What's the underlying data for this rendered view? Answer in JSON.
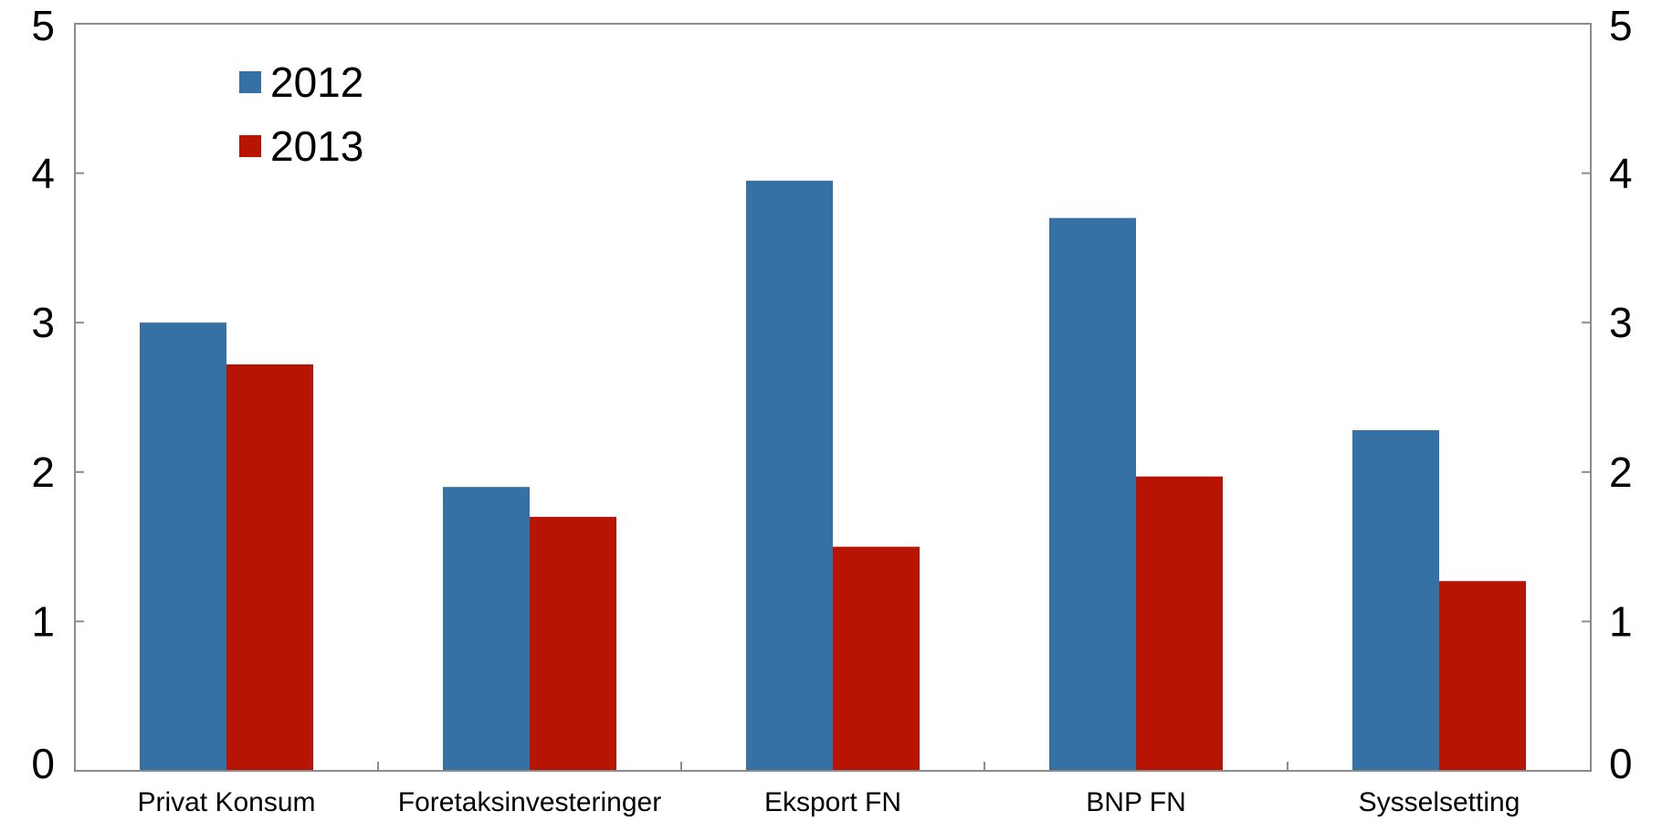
{
  "chart_data": {
    "type": "bar",
    "categories": [
      "Privat Konsum",
      "Foretaksinvesteringer",
      "Eksport FN",
      "BNP FN",
      "Sysselsetting"
    ],
    "series": [
      {
        "name": "2012",
        "color": "#3571A5",
        "values": [
          3.0,
          1.9,
          3.95,
          3.7,
          2.28
        ]
      },
      {
        "name": "2013",
        "color": "#B81404",
        "values": [
          2.72,
          1.7,
          1.5,
          1.97,
          1.27
        ]
      }
    ],
    "title": "",
    "xlabel": "",
    "ylabel": "",
    "ylim": [
      0,
      5
    ],
    "yticks": [
      "0",
      "1",
      "2",
      "3",
      "4",
      "5"
    ],
    "y2ticks": [
      "0",
      "1",
      "2",
      "3",
      "4",
      "5"
    ],
    "grid": false,
    "legend_position": "top-left"
  }
}
